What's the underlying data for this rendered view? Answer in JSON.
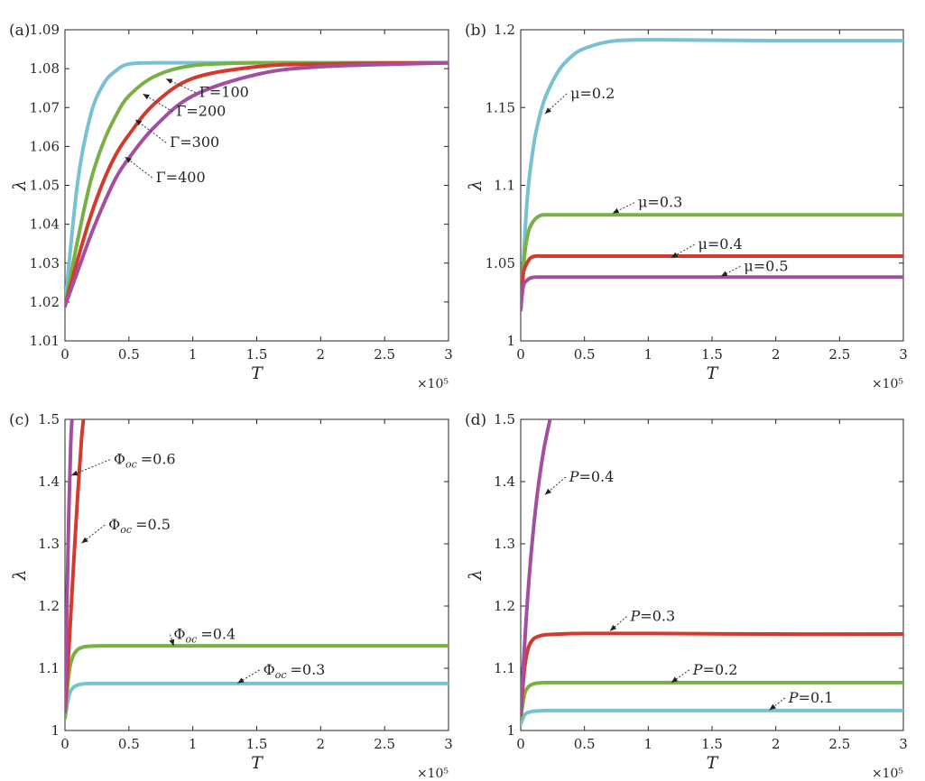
{
  "colors": {
    "cyan": "#77c1d2",
    "green": "#78b044",
    "red": "#d33a2c",
    "purple": "#a24fa0"
  },
  "chart_data": [
    {
      "panel_label": "(a)",
      "type": "line",
      "xlabel": "T",
      "ylabel": "λ",
      "x_multiplier": "×10⁵",
      "xlim": [
        0,
        3
      ],
      "ylim": [
        1.01,
        1.09
      ],
      "xticks": [
        "0",
        "0.5",
        "1",
        "1.5",
        "2",
        "2.5",
        "3"
      ],
      "yticks": [
        "1.01",
        "1.02",
        "1.03",
        "1.04",
        "1.05",
        "1.06",
        "1.07",
        "1.08",
        "1.09"
      ],
      "series": [
        {
          "color": "#77c1d2",
          "x": [
            0,
            0.1,
            0.2,
            0.3,
            0.4,
            0.5,
            0.7,
            1,
            1.5,
            2,
            3
          ],
          "y": [
            1.019,
            1.051,
            1.068,
            1.076,
            1.0795,
            1.0812,
            1.0815,
            1.0815,
            1.0815,
            1.0815,
            1.0815
          ]
        },
        {
          "color": "#78b044",
          "x": [
            0,
            0.1,
            0.2,
            0.3,
            0.4,
            0.5,
            0.7,
            1,
            1.5,
            2,
            3
          ],
          "y": [
            1.019,
            1.036,
            1.051,
            1.061,
            1.068,
            1.073,
            1.078,
            1.0808,
            1.0815,
            1.0815,
            1.0815
          ]
        },
        {
          "color": "#d33a2c",
          "x": [
            0,
            0.1,
            0.2,
            0.3,
            0.4,
            0.5,
            0.7,
            1,
            1.5,
            2,
            3
          ],
          "y": [
            1.019,
            1.031,
            1.042,
            1.051,
            1.058,
            1.063,
            1.071,
            1.0775,
            1.0805,
            1.0812,
            1.0815
          ]
        },
        {
          "color": "#a24fa0",
          "x": [
            0,
            0.1,
            0.2,
            0.3,
            0.4,
            0.5,
            0.7,
            1,
            1.5,
            2,
            3
          ],
          "y": [
            1.019,
            1.028,
            1.037,
            1.045,
            1.052,
            1.057,
            1.065,
            1.073,
            1.0785,
            1.0805,
            1.0815
          ]
        }
      ],
      "annotations": [
        {
          "text": "Γ=100",
          "x": 1.05,
          "y": 1.0727,
          "ax": 0.79,
          "ay": 1.0774
        },
        {
          "text": "Γ=200",
          "x": 0.87,
          "y": 1.0678,
          "ax": 0.61,
          "ay": 1.0735
        },
        {
          "text": "Γ=300",
          "x": 0.82,
          "y": 1.0598,
          "ax": 0.55,
          "ay": 1.0669
        },
        {
          "text": "Γ=400",
          "x": 0.71,
          "y": 1.0508,
          "ax": 0.47,
          "ay": 1.0573
        }
      ]
    },
    {
      "panel_label": "(b)",
      "type": "line",
      "xlabel": "T",
      "ylabel": "λ",
      "x_multiplier": "×10⁵",
      "xlim": [
        0,
        3
      ],
      "ylim": [
        1,
        1.2
      ],
      "xticks": [
        "0",
        "0.5",
        "1",
        "1.5",
        "2",
        "2.5",
        "3"
      ],
      "yticks": [
        "1",
        "1.05",
        "1.1",
        "1.15",
        "1.2"
      ],
      "series": [
        {
          "color": "#77c1d2",
          "x": [
            0,
            0.05,
            0.1,
            0.15,
            0.2,
            0.3,
            0.4,
            0.5,
            0.7,
            0.9,
            1.2,
            2,
            3
          ],
          "y": [
            1.02,
            1.09,
            1.125,
            1.145,
            1.158,
            1.174,
            1.183,
            1.188,
            1.1925,
            1.1935,
            1.1935,
            1.193,
            1.193
          ]
        },
        {
          "color": "#78b044",
          "x": [
            0,
            0.03,
            0.06,
            0.1,
            0.15,
            0.2,
            0.3,
            0.5,
            1,
            3
          ],
          "y": [
            1.02,
            1.055,
            1.07,
            1.077,
            1.0805,
            1.081,
            1.081,
            1.081,
            1.081,
            1.081
          ]
        },
        {
          "color": "#d33a2c",
          "x": [
            0,
            0.02,
            0.05,
            0.08,
            0.12,
            0.2,
            0.5,
            1,
            3
          ],
          "y": [
            1.02,
            1.043,
            1.05,
            1.0535,
            1.0545,
            1.0545,
            1.0545,
            1.0545,
            1.0545
          ]
        },
        {
          "color": "#a24fa0",
          "x": [
            0,
            0.02,
            0.05,
            0.08,
            0.12,
            0.2,
            0.5,
            1,
            3
          ],
          "y": [
            1.02,
            1.035,
            1.039,
            1.0405,
            1.041,
            1.041,
            1.041,
            1.041,
            1.041
          ]
        }
      ],
      "annotations": [
        {
          "text": "μ=0.2",
          "x": 0.39,
          "y": 1.156,
          "ax": 0.19,
          "ay": 1.146
        },
        {
          "text": "μ=0.3",
          "x": 0.92,
          "y": 1.086,
          "ax": 0.72,
          "ay": 1.082
        },
        {
          "text": "μ=0.4",
          "x": 1.39,
          "y": 1.059,
          "ax": 1.18,
          "ay": 1.0535
        },
        {
          "text": "μ=0.5",
          "x": 1.75,
          "y": 1.045,
          "ax": 1.57,
          "ay": 1.0415
        }
      ]
    },
    {
      "panel_label": "(c)",
      "type": "line",
      "xlabel": "T",
      "ylabel": "λ",
      "x_multiplier": "×10⁵",
      "xlim": [
        0,
        3
      ],
      "ylim": [
        1,
        1.5
      ],
      "xticks": [
        "0",
        "0.5",
        "1",
        "1.5",
        "2",
        "2.5",
        "3"
      ],
      "yticks": [
        "1",
        "1.1",
        "1.2",
        "1.3",
        "1.4",
        "1.5"
      ],
      "series": [
        {
          "color": "#77c1d2",
          "x": [
            0,
            0.03,
            0.06,
            0.1,
            0.15,
            0.2,
            0.3,
            0.5,
            1,
            3
          ],
          "y": [
            1.02,
            1.055,
            1.068,
            1.073,
            1.075,
            1.0755,
            1.0755,
            1.0755,
            1.0755,
            1.0755
          ]
        },
        {
          "color": "#78b044",
          "x": [
            0,
            0.03,
            0.06,
            0.1,
            0.15,
            0.2,
            0.3,
            0.5,
            1,
            3
          ],
          "y": [
            1.02,
            1.09,
            1.118,
            1.13,
            1.1345,
            1.1355,
            1.136,
            1.136,
            1.136,
            1.136
          ]
        },
        {
          "color": "#d33a2c",
          "x": [
            0,
            0.03,
            0.06,
            0.1,
            0.13,
            0.145
          ],
          "y": [
            1.03,
            1.13,
            1.24,
            1.38,
            1.47,
            1.5
          ]
        },
        {
          "color": "#a24fa0",
          "x": [
            0,
            0.015,
            0.03,
            0.045,
            0.055
          ],
          "y": [
            1.03,
            1.2,
            1.35,
            1.46,
            1.5
          ]
        }
      ],
      "annotations": [
        {
          "text": "Φ",
          "sub": "oc",
          "val": "=0.6",
          "x": 0.38,
          "y": 1.428,
          "ax": 0.05,
          "ay": 1.41
        },
        {
          "text": "Φ",
          "sub": "oc",
          "val": "=0.5",
          "x": 0.34,
          "y": 1.323,
          "ax": 0.13,
          "ay": 1.301
        },
        {
          "text": "Φ",
          "sub": "oc",
          "val": "=0.4",
          "x": 0.85,
          "y": 1.147,
          "ax": 0.85,
          "ay": 1.136
        },
        {
          "text": "Φ",
          "sub": "oc",
          "val": "=0.3",
          "x": 1.55,
          "y": 1.09,
          "ax": 1.35,
          "ay": 1.076
        }
      ]
    },
    {
      "panel_label": "(d)",
      "type": "line",
      "xlabel": "T",
      "ylabel": "λ",
      "x_multiplier": "×10⁵",
      "xlim": [
        0,
        3
      ],
      "ylim": [
        1,
        1.5
      ],
      "xticks": [
        "0",
        "0.5",
        "1",
        "1.5",
        "2",
        "2.5",
        "3"
      ],
      "yticks": [
        "1",
        "1.1",
        "1.2",
        "1.3",
        "1.4",
        "1.5"
      ],
      "series": [
        {
          "color": "#77c1d2",
          "x": [
            0,
            0.03,
            0.06,
            0.1,
            0.15,
            0.2,
            0.5,
            1,
            3
          ],
          "y": [
            1.01,
            1.025,
            1.029,
            1.031,
            1.0315,
            1.032,
            1.032,
            1.032,
            1.032
          ]
        },
        {
          "color": "#78b044",
          "x": [
            0,
            0.03,
            0.06,
            0.1,
            0.15,
            0.2,
            0.5,
            1,
            3
          ],
          "y": [
            1.02,
            1.058,
            1.07,
            1.075,
            1.0765,
            1.077,
            1.077,
            1.077,
            1.077
          ]
        },
        {
          "color": "#d33a2c",
          "x": [
            0,
            0.03,
            0.06,
            0.1,
            0.15,
            0.2,
            0.3,
            0.5,
            1,
            2,
            3
          ],
          "y": [
            1.025,
            1.1,
            1.133,
            1.147,
            1.152,
            1.154,
            1.155,
            1.156,
            1.156,
            1.155,
            1.155
          ]
        },
        {
          "color": "#a24fa0",
          "x": [
            0,
            0.04,
            0.08,
            0.13,
            0.18,
            0.23
          ],
          "y": [
            1.03,
            1.17,
            1.28,
            1.38,
            1.45,
            1.5
          ]
        }
      ],
      "annotations": [
        {
          "text": "P",
          "val": "=0.4",
          "x": 0.38,
          "y": 1.4,
          "ax": 0.19,
          "ay": 1.379
        },
        {
          "text": "P",
          "val": "=0.3",
          "x": 0.86,
          "y": 1.176,
          "ax": 0.7,
          "ay": 1.16
        },
        {
          "text": "P",
          "val": "=0.2",
          "x": 1.35,
          "y": 1.09,
          "ax": 1.18,
          "ay": 1.077
        },
        {
          "text": "P",
          "val": "=0.1",
          "x": 2.1,
          "y": 1.045,
          "ax": 1.95,
          "ay": 1.033
        }
      ]
    }
  ]
}
